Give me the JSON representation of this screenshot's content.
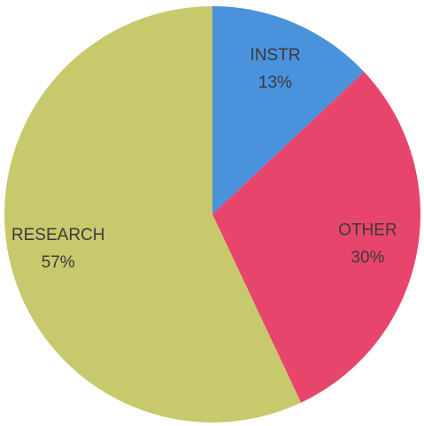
{
  "chart_data": {
    "type": "pie",
    "categories": [
      "INSTR",
      "OTHER",
      "RESEARCH"
    ],
    "values": [
      13,
      30,
      57
    ],
    "value_labels": [
      "13%",
      "30%",
      "57%"
    ],
    "colors": [
      "#4b92dc",
      "#e8456c",
      "#c8c96c"
    ]
  }
}
